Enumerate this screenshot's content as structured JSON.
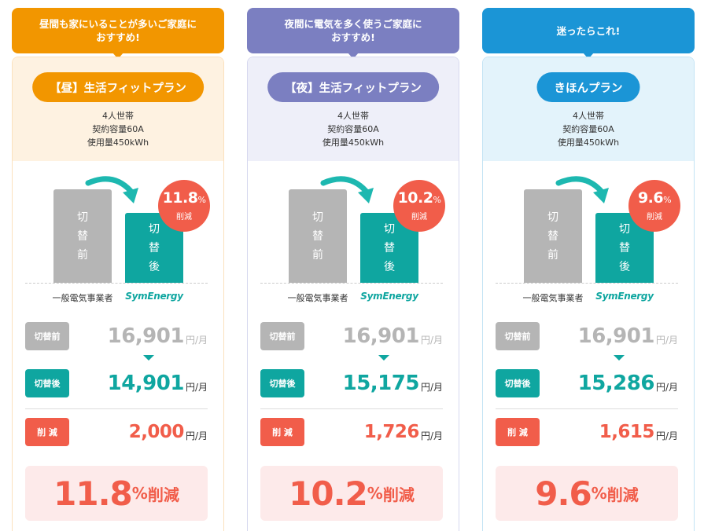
{
  "plans": [
    {
      "recommend": "昼間も家にいることが多いご家庭に\nおすすめ!",
      "plan_name": "【昼】生活フィットプラン",
      "cond1": "4人世帯",
      "cond2": "契約容量60A",
      "cond3": "使用量450kWh",
      "bar_before": [
        "切",
        "替",
        "前"
      ],
      "bar_after": [
        "切",
        "替",
        "後"
      ],
      "label_before": "一般電気事業者",
      "label_brand": "SymEnergy",
      "badge_pct": "11.8",
      "badge_unit": "%",
      "badge_cut": "削減",
      "tag_before": "切替前",
      "price_before": "16,901",
      "tag_after": "切替後",
      "price_after": "14,901",
      "tag_saving": "削 減",
      "saving": "2,000",
      "unit": "円/月",
      "total_pct": "11.8",
      "total_sign": "%",
      "total_cut": "削減",
      "color": "#f29600",
      "bg": "#fef2e1",
      "border": "#fbe1bd"
    },
    {
      "recommend": "夜間に電気を多く使うご家庭に\nおすすめ!",
      "plan_name": "【夜】生活フィットプラン",
      "cond1": "4人世帯",
      "cond2": "契約容量60A",
      "cond3": "使用量450kWh",
      "bar_before": [
        "切",
        "替",
        "前"
      ],
      "bar_after": [
        "切",
        "替",
        "後"
      ],
      "label_before": "一般電気事業者",
      "label_brand": "SymEnergy",
      "badge_pct": "10.2",
      "badge_unit": "%",
      "badge_cut": "削減",
      "tag_before": "切替前",
      "price_before": "16,901",
      "tag_after": "切替後",
      "price_after": "15,175",
      "tag_saving": "削 減",
      "saving": "1,726",
      "unit": "円/月",
      "total_pct": "10.2",
      "total_sign": "%",
      "total_cut": "削減",
      "color": "#7b7fc1",
      "bg": "#eeeff9",
      "border": "#d6d8ef"
    },
    {
      "recommend": "迷ったらこれ!",
      "plan_name": "きほんプラン",
      "cond1": "4人世帯",
      "cond2": "契約容量60A",
      "cond3": "使用量450kWh",
      "bar_before": [
        "切",
        "替",
        "前"
      ],
      "bar_after": [
        "切",
        "替",
        "後"
      ],
      "label_before": "一般電気事業者",
      "label_brand": "SymEnergy",
      "badge_pct": "9.6",
      "badge_unit": "%",
      "badge_cut": "削減",
      "tag_before": "切替前",
      "price_before": "16,901",
      "tag_after": "切替後",
      "price_after": "15,286",
      "tag_saving": "削 減",
      "saving": "1,615",
      "unit": "円/月",
      "total_pct": "9.6",
      "total_sign": "%",
      "total_cut": "削減",
      "color": "#1b95d6",
      "bg": "#e3f3fb",
      "border": "#c3e3f4"
    }
  ],
  "colors": {
    "teal": "#0fa6a0",
    "gray": "#b5b5b5",
    "red": "#f15d4a",
    "pink": "#fdeaea"
  }
}
